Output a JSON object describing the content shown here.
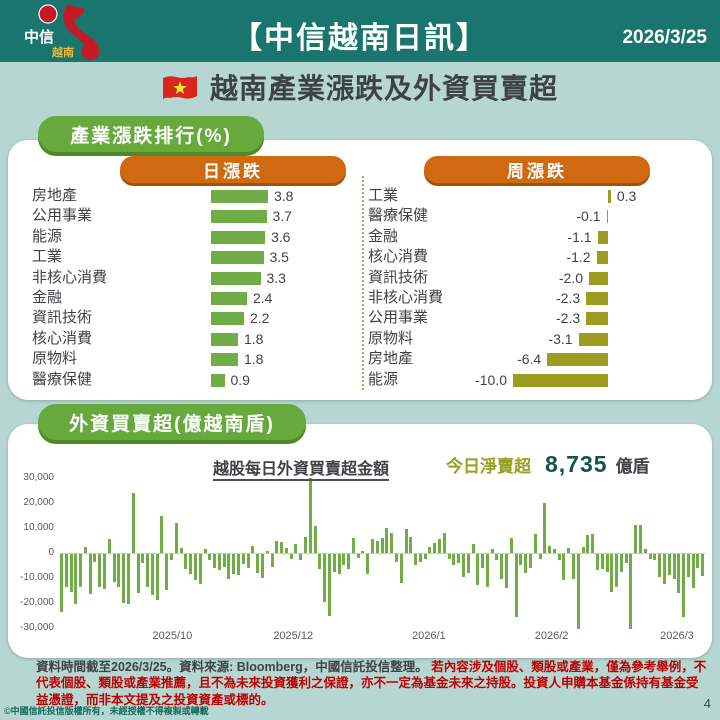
{
  "header": {
    "title": "【中信越南日訊】",
    "date": "2026/3/25",
    "logo": {
      "brand": "中信",
      "sub": "越南"
    }
  },
  "subtitle": {
    "text": "越南產業漲跌及外資買賣超"
  },
  "panel1": {
    "title": "產業漲跌排行(%)",
    "daily_label": "日漲跌",
    "weekly_label": "周漲跌"
  },
  "panel2": {
    "title": "外資買賣超(億越南盾)",
    "chart_title": "越股每日外資買賣超金額",
    "net_label": "今日淨賣超",
    "net_value": "8,735",
    "net_unit": "億盾"
  },
  "footer": {
    "source": "資料時間截至2026/3/25。資料來源: Bloomberg，中國信託投信整理。",
    "disclaimer": "若內容涉及個股、類股或產業，僅為參考舉例，不代表個股、類股或產業推薦，且不為未來投資獲利之保證，亦不一定為基金未來之持股。投資人申購本基金係持有基金受益憑證，而非本文提及之投資資產或標的。",
    "copyright": "©中國信託投信版權所有，未經授權不得複製或轉載"
  },
  "page_number": "4",
  "colors": {
    "header_teal": "#19756e",
    "page_bg": "#b5d6d1",
    "pill_green": "#67a93d",
    "pill_orange": "#d06a10",
    "bar_green": "#70ad47",
    "bar_olive": "#9e9b21",
    "text_red": "#c00000",
    "net_value_color": "#14534c"
  },
  "chart_data": [
    {
      "id": "daily_sector",
      "type": "bar",
      "orientation": "horizontal",
      "title": "日漲跌",
      "unit": "%",
      "bar_color": "#70ad47",
      "categories": [
        "房地產",
        "公用事業",
        "能源",
        "工業",
        "非核心消費",
        "金融",
        "資訊技術",
        "核心消費",
        "原物料",
        "醫療保健"
      ],
      "values": [
        3.8,
        3.7,
        3.6,
        3.5,
        3.3,
        2.4,
        2.2,
        1.8,
        1.8,
        0.9
      ],
      "value_labels": [
        "3.8",
        "3.7",
        "3.6",
        "3.5",
        "3.3",
        "2.4",
        "2.2",
        "1.8",
        "1.8",
        "0.9"
      ]
    },
    {
      "id": "weekly_sector",
      "type": "bar",
      "orientation": "horizontal",
      "title": "周漲跌",
      "unit": "%",
      "bar_color": "#9e9b21",
      "categories": [
        "工業",
        "醫療保健",
        "金融",
        "核心消費",
        "資訊技術",
        "非核心消費",
        "公用事業",
        "原物料",
        "房地產",
        "能源"
      ],
      "values": [
        0.3,
        -0.1,
        -1.1,
        -1.2,
        -2.0,
        -2.3,
        -2.3,
        -3.1,
        -6.4,
        -10.0
      ],
      "value_labels": [
        "0.3",
        "-0.1",
        "-1.1",
        "-1.2",
        "-2.0",
        "-2.3",
        "-2.3",
        "-3.1",
        "-6.4",
        "-10.0"
      ]
    },
    {
      "id": "daily_foreign_flow",
      "type": "bar",
      "title": "越股每日外資買賣超金額",
      "ylabel": "億越南盾",
      "ylim": [
        -30000,
        30000
      ],
      "grid": "zero-line-only",
      "bar_color": "#70ad47",
      "yticks": [
        "30,000",
        "20,000",
        "10,000",
        "0",
        "-10,000",
        "-20,000",
        "-30,000"
      ],
      "xticks": [
        {
          "label": "2025/10",
          "pos": 0.174
        },
        {
          "label": "2025/12",
          "pos": 0.361
        },
        {
          "label": "2026/1",
          "pos": 0.571
        },
        {
          "label": "2026/2",
          "pos": 0.761
        },
        {
          "label": "2026/3",
          "pos": 0.955
        }
      ],
      "values": [
        -23000,
        -13000,
        -15000,
        -20000,
        -13000,
        2500,
        -16000,
        -3000,
        -13000,
        -14000,
        5800,
        -11000,
        -13000,
        -19500,
        -20000,
        24000,
        -15500,
        -3500,
        -13000,
        -16500,
        -18500,
        15000,
        -14500,
        -2500,
        12000,
        2000,
        -6000,
        -8000,
        -10500,
        -12000,
        1500,
        -2500,
        -5500,
        -6500,
        -5000,
        -10000,
        -8000,
        -8500,
        -4000,
        -5500,
        3000,
        -7500,
        -9500,
        1000,
        -5000,
        5000,
        4500,
        2000,
        -2000,
        3500,
        -2500,
        6500,
        30000,
        10800,
        -6000,
        -19000,
        -24800,
        -7000,
        -8000,
        -4500,
        -6000,
        6000,
        -1500,
        1000,
        -8000,
        5500,
        5000,
        6000,
        10200,
        8200,
        -3000,
        -11500,
        9800,
        6500,
        -4500,
        -3000,
        -1800,
        2500,
        4000,
        5500,
        8000,
        -2000,
        -4500,
        -3500,
        -9000,
        -7500,
        3500,
        -12500,
        -5500,
        -13000,
        1500,
        -2500,
        -10000,
        -13500,
        6000,
        -25000,
        -4500,
        -7500,
        -5500,
        7800,
        -2000,
        20200,
        2800,
        1500,
        -2500,
        -10500,
        2200,
        -10000,
        -30000,
        2500,
        7200,
        7500,
        -6500,
        -6000,
        -7000,
        -15000,
        -13000,
        -7000,
        -3500,
        -30000,
        11200,
        11200,
        1500,
        -2000,
        -2200,
        -9000,
        -12000,
        -8500,
        -10000,
        -15500,
        -25000,
        -9000,
        -13500,
        -5500,
        -8735
      ]
    }
  ]
}
